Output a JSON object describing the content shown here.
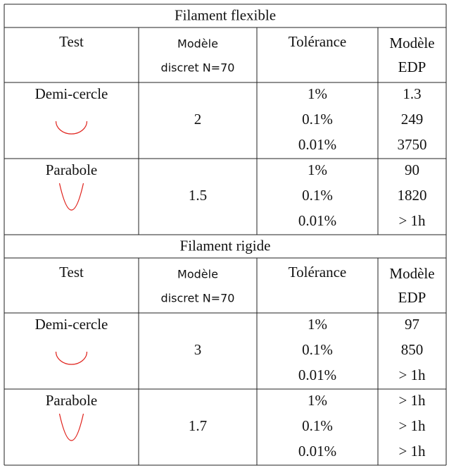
{
  "sections": [
    {
      "title": "Filament flexible",
      "header": {
        "test": "Test",
        "model_line1": "Modèle",
        "model_line2": "discret N=70",
        "tolerance": "Tolérance",
        "edp_line1": "Modèle",
        "edp_line2": "EDP"
      },
      "groups": [
        {
          "test": "Demi-cercle",
          "discrete": "2",
          "rows": [
            [
              "1%",
              "1.3"
            ],
            [
              "0.1%",
              "249"
            ],
            [
              "0.01%",
              "3750"
            ]
          ]
        },
        {
          "test": "Parabole",
          "discrete": "1.5",
          "rows": [
            [
              "1%",
              "90"
            ],
            [
              "0.1%",
              "1820"
            ],
            [
              "0.01%",
              "> 1h"
            ]
          ]
        }
      ]
    },
    {
      "title": "Filament rigide",
      "header": {
        "test": "Test",
        "model_line1": "Modèle",
        "model_line2": "discret N=70",
        "tolerance": "Tolérance",
        "edp_line1": "Modèle",
        "edp_line2": "EDP"
      },
      "groups": [
        {
          "test": "Demi-cercle",
          "discrete": "3",
          "rows": [
            [
              "1%",
              "97"
            ],
            [
              "0.1%",
              "850"
            ],
            [
              "0.01%",
              "> 1h"
            ]
          ]
        },
        {
          "test": "Parabole",
          "discrete": "1.7",
          "rows": [
            [
              "1%",
              "> 1h"
            ],
            [
              "0.1%",
              "> 1h"
            ],
            [
              "0.01%",
              "> 1h"
            ]
          ]
        }
      ]
    }
  ]
}
